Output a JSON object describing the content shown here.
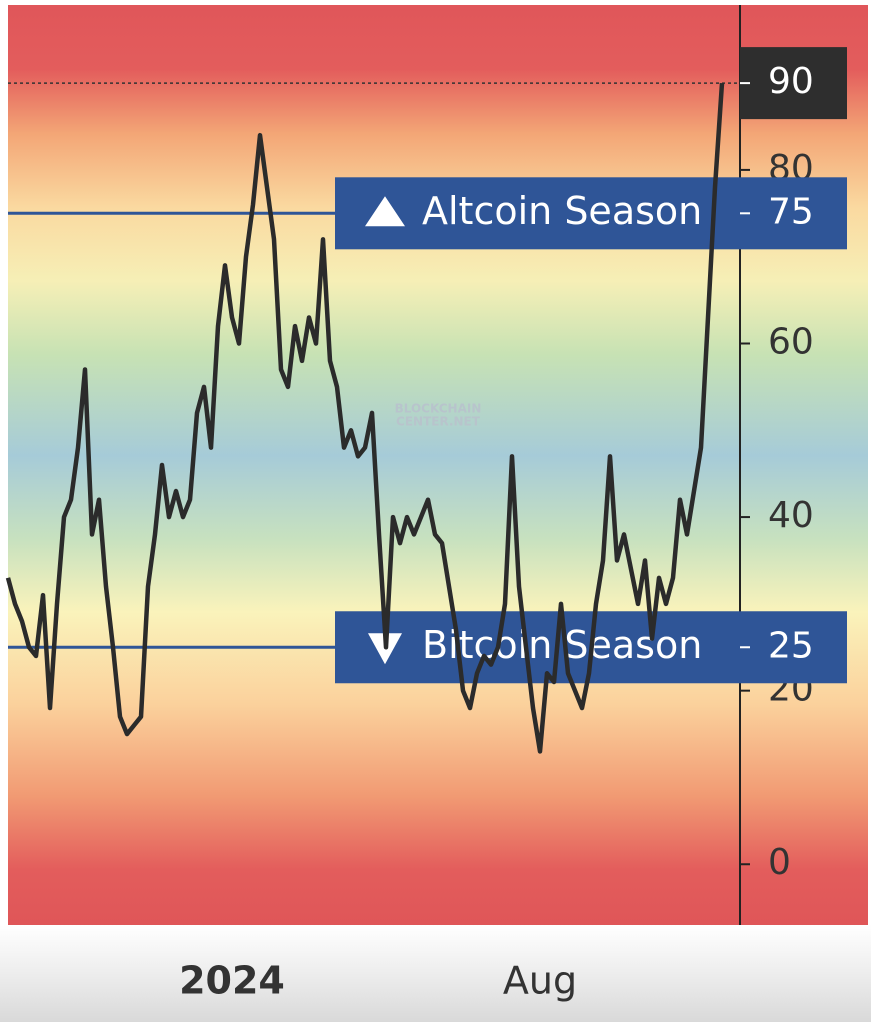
{
  "chart_data": {
    "type": "line",
    "color": "#2b2b2b",
    "categories": [
      null,
      null,
      null,
      null,
      null,
      null,
      null,
      null,
      null,
      null,
      null,
      null,
      null,
      null,
      null,
      null,
      null,
      null,
      null,
      null,
      null,
      null,
      null,
      null,
      null,
      null,
      null,
      null,
      null,
      null,
      null,
      null,
      "2024",
      null,
      null,
      null,
      null,
      null,
      null,
      null,
      null,
      null,
      null,
      null,
      null,
      null,
      null,
      null,
      null,
      null,
      null,
      null,
      null,
      null,
      null,
      null,
      null,
      null,
      null,
      null,
      null,
      null,
      null,
      null,
      null,
      null,
      null,
      null,
      null,
      null,
      null,
      null,
      null,
      null,
      null,
      null,
      "Aug",
      null,
      null,
      null,
      null,
      null,
      null,
      null,
      null,
      null,
      null,
      null,
      null,
      null,
      null,
      null,
      null,
      null,
      null,
      null,
      null,
      null,
      null,
      null,
      null,
      null,
      null
    ],
    "values": [
      33,
      30,
      28,
      25,
      24,
      31,
      18,
      30,
      40,
      42,
      48,
      57,
      38,
      42,
      32,
      25,
      17,
      15,
      16,
      17,
      32,
      38,
      46,
      40,
      43,
      40,
      42,
      52,
      55,
      48,
      62,
      69,
      63,
      60,
      70,
      76,
      84,
      78,
      72,
      57,
      55,
      62,
      58,
      63,
      60,
      72,
      58,
      55,
      48,
      50,
      47,
      48,
      52,
      38,
      25,
      40,
      37,
      40,
      38,
      40,
      42,
      38,
      37,
      32,
      27,
      20,
      18,
      22,
      24,
      23,
      25,
      30,
      47,
      32,
      25,
      18,
      13,
      22,
      21,
      30,
      22,
      20,
      18,
      22,
      30,
      35,
      47,
      35,
      38,
      34,
      30,
      35,
      26,
      33,
      30,
      33,
      42,
      38,
      43,
      48,
      63,
      78,
      90
    ],
    "ylim": [
      -7,
      99
    ],
    "yticks": [
      0,
      20,
      40,
      60,
      80
    ],
    "thresholds": [
      {
        "label": "Altcoin Season",
        "value": 75,
        "direction": "up",
        "color": "#2f5597"
      },
      {
        "label": "Bitcoin Season",
        "value": 25,
        "direction": "down",
        "color": "#2f5597"
      }
    ],
    "watermark": [
      "BLOCKCHAIN",
      "CENTER.NET"
    ]
  }
}
